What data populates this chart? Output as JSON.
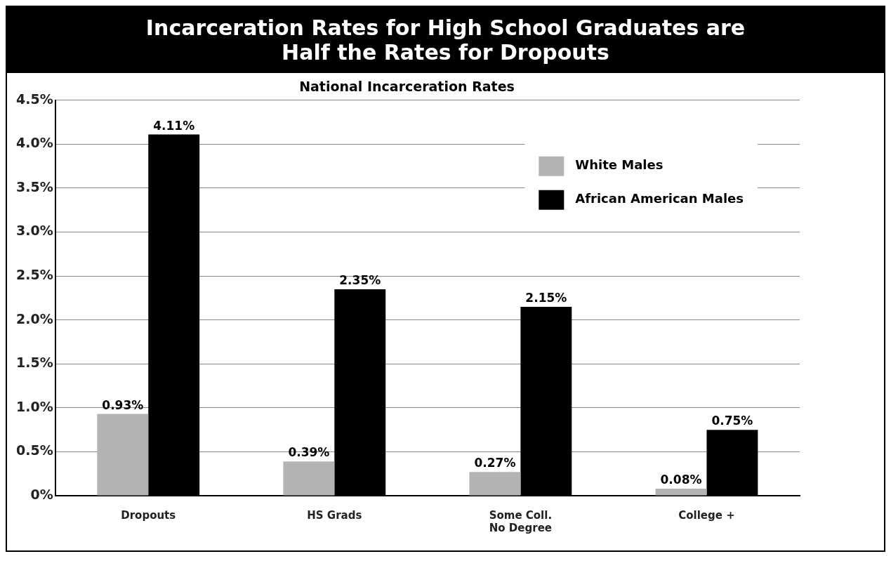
{
  "chart_data": {
    "type": "bar",
    "title": "Incarceration Rates for High School Graduates are Half the Rates for Dropouts",
    "subtitle": "National Incarceration Rates",
    "categories": [
      "Dropouts",
      "HS Grads",
      "Some Coll. No Degree",
      "College +"
    ],
    "series": [
      {
        "name": "White Males",
        "color": "#b3b3b3",
        "values": [
          0.93,
          0.39,
          0.27,
          0.08
        ],
        "value_labels": [
          "0.93%",
          "0.39%",
          "0.27%",
          "0.08%"
        ]
      },
      {
        "name": "African American Males",
        "color": "#000000",
        "values": [
          4.11,
          2.35,
          2.15,
          0.75
        ],
        "value_labels": [
          "4.11%",
          "2.35%",
          "2.15%",
          "0.75%"
        ]
      }
    ],
    "ylim": [
      0,
      4.5
    ],
    "yticks": [
      {
        "value": 0,
        "label": "0%"
      },
      {
        "value": 0.5,
        "label": "0.5%"
      },
      {
        "value": 1,
        "label": "1.0%"
      },
      {
        "value": 1.5,
        "label": "1.5%"
      },
      {
        "value": 2,
        "label": "2.0%"
      },
      {
        "value": 2.5,
        "label": "2.5%"
      },
      {
        "value": 3,
        "label": "3.0%"
      },
      {
        "value": 3.5,
        "label": "3.5%"
      },
      {
        "value": 4,
        "label": "4.0%"
      },
      {
        "value": 4.5,
        "label": "4.5%"
      }
    ],
    "grid": "y",
    "legend": "top right"
  }
}
